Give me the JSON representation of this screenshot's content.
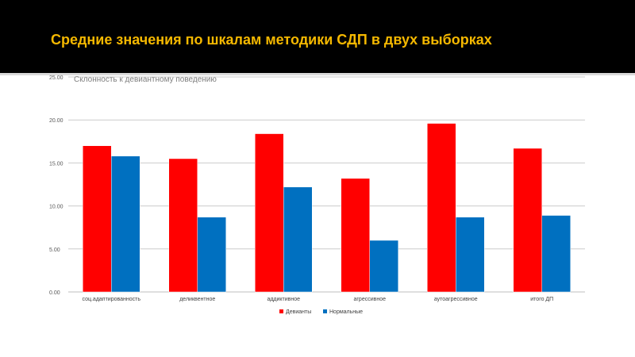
{
  "slide": {
    "title": "Средние значения по шкалам методики СДП в двух выборках"
  },
  "colors": {
    "title_band": "#000000",
    "title_text": "#f5b800",
    "series_deviants": "#ff0000",
    "series_normal": "#0070c0",
    "gridline": "#cccccc"
  },
  "chart_data": {
    "type": "bar",
    "title": "Склонность к девиантному поведению",
    "xlabel": "",
    "ylabel": "",
    "ylim": [
      0,
      25
    ],
    "yticks": [
      "0.00",
      "5.00",
      "10.00",
      "15.00",
      "20.00",
      "25.00"
    ],
    "grid": true,
    "legend_position": "bottom",
    "categories": [
      "соц.адаптированность",
      "деликвентное",
      "аддиктивное",
      "агрессивное",
      "аутоагрессивное",
      "итого ДП"
    ],
    "series": [
      {
        "name": "Девианты",
        "color": "#ff0000",
        "values": [
          17.0,
          15.5,
          18.4,
          13.2,
          19.6,
          16.7
        ]
      },
      {
        "name": "Нормальные",
        "color": "#0070c0",
        "values": [
          15.8,
          8.7,
          12.2,
          6.0,
          8.7,
          8.9
        ]
      }
    ]
  }
}
